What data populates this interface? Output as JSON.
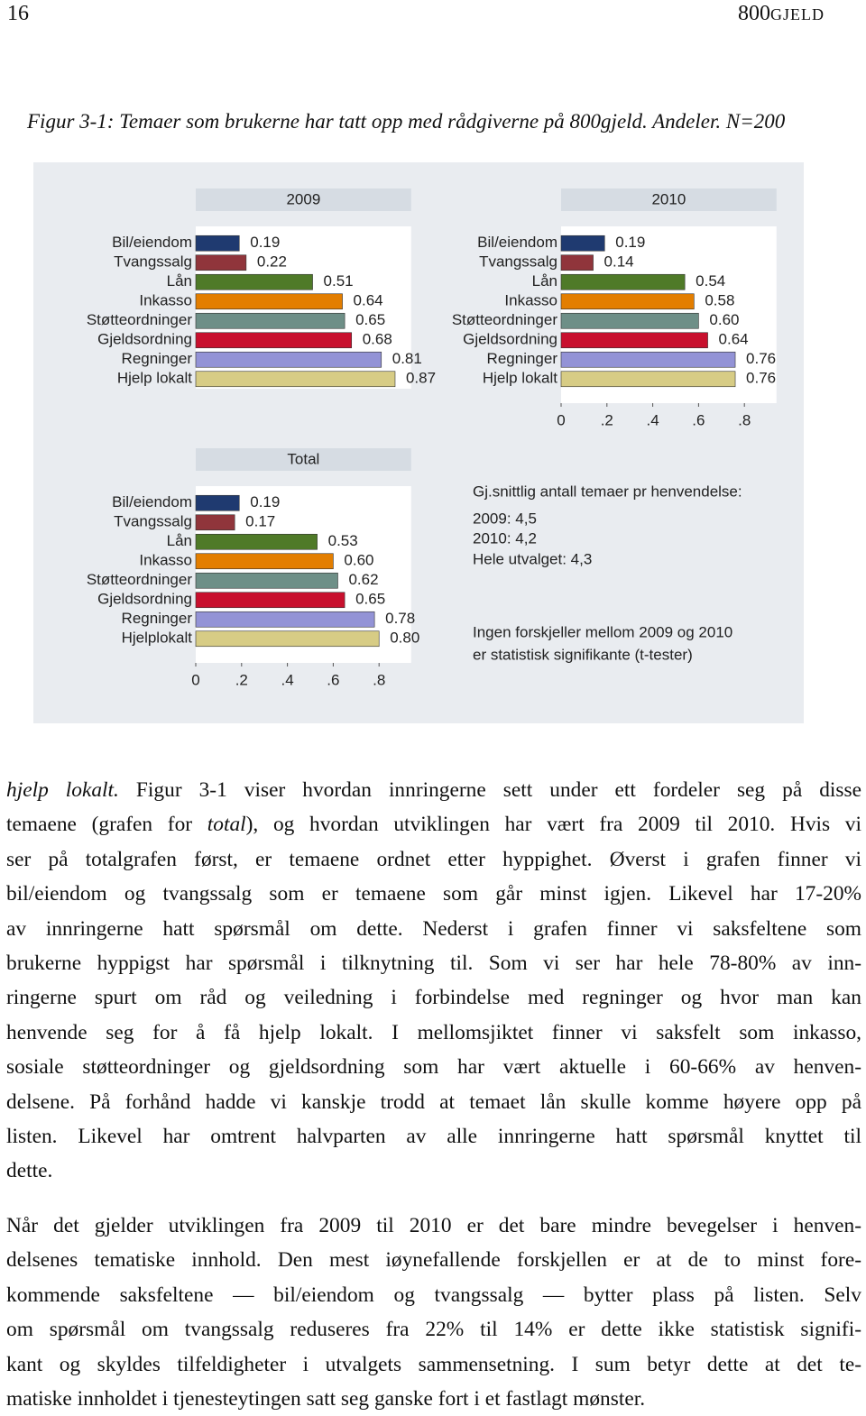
{
  "header": {
    "page": "16",
    "brand": "800",
    "brand_caps": "GJELD"
  },
  "caption": "Figur 3-1: Temaer som brukerne har tatt opp med rådgiverne på 800gjeld. Andeler. N=200",
  "chart_data": [
    {
      "type": "hbar",
      "title": "2009",
      "categories": [
        "Bil/eiendom",
        "Tvangssalg",
        "Lån",
        "Inkasso",
        "Støtteordninger",
        "Gjeldsordning",
        "Regninger",
        "Hjelp lokalt"
      ],
      "values": [
        0.19,
        0.22,
        0.51,
        0.64,
        0.65,
        0.68,
        0.81,
        0.87
      ],
      "value_labels": [
        "0.19",
        "0.22",
        "0.51",
        "0.64",
        "0.65",
        "0.68",
        "0.81",
        "0.87"
      ],
      "colors": [
        "#1f3a70",
        "#90353b",
        "#4f7a28",
        "#e37e00",
        "#6e8f87",
        "#c8102e",
        "#9393d6",
        "#d7cc85"
      ],
      "xlim": [
        0,
        0.94
      ]
    },
    {
      "type": "hbar",
      "title": "2010",
      "categories": [
        "Bil/eiendom",
        "Tvangssalg",
        "Lån",
        "Inkasso",
        "Støtteordninger",
        "Gjeldsordning",
        "Regninger",
        "Hjelp lokalt"
      ],
      "values": [
        0.19,
        0.14,
        0.54,
        0.58,
        0.6,
        0.64,
        0.76,
        0.76
      ],
      "value_labels": [
        "0.19",
        "0.14",
        "0.54",
        "0.58",
        "0.60",
        "0.64",
        "0.76",
        "0.76"
      ],
      "colors": [
        "#1f3a70",
        "#90353b",
        "#4f7a28",
        "#e37e00",
        "#6e8f87",
        "#c8102e",
        "#9393d6",
        "#d7cc85"
      ],
      "xlim": [
        0,
        0.94
      ],
      "xticks": [
        0,
        {
          "value": 0.2,
          "label": ".2"
        },
        {
          "value": 0.4,
          "label": ".4"
        },
        {
          "value": 0.6,
          "label": ".6"
        },
        {
          "value": 0.8,
          "label": ".8"
        }
      ]
    },
    {
      "type": "hbar",
      "title": "Total",
      "categories": [
        "Bil/eiendom",
        "Tvangssalg",
        "Lån",
        "Inkasso",
        "Støtteordninger",
        "Gjeldsordning",
        "Regninger",
        "Hjelplokalt"
      ],
      "values": [
        0.19,
        0.17,
        0.53,
        0.6,
        0.62,
        0.65,
        0.78,
        0.8
      ],
      "value_labels": [
        "0.19",
        "0.17",
        "0.53",
        "0.60",
        "0.62",
        "0.65",
        "0.78",
        "0.80"
      ],
      "colors": [
        "#1f3a70",
        "#90353b",
        "#4f7a28",
        "#e37e00",
        "#6e8f87",
        "#c8102e",
        "#9393d6",
        "#d7cc85"
      ],
      "xlim": [
        0,
        0.94
      ],
      "xticks": [
        0,
        {
          "value": 0.2,
          "label": ".2"
        },
        {
          "value": 0.4,
          "label": ".4"
        },
        {
          "value": 0.6,
          "label": ".6"
        },
        {
          "value": 0.8,
          "label": ".8"
        }
      ]
    }
  ],
  "notes": [
    "Gj.snittlig antall temaer pr henvendelse:",
    "2009: 4,5",
    "2010: 4,2",
    "Hele utvalget: 4,3",
    "Ingen forskjeller mellom 2009 og 2010",
    "er statistisk signifikante (t-tester)"
  ],
  "paragraphs": [
    {
      "lines": [
        [
          {
            "text": "hjelp lokalt.",
            "em": true
          },
          {
            "text": " Figur 3-1 viser hvordan innringerne sett under ett fordeler seg på disse"
          }
        ],
        [
          {
            "text": "temaene (grafen for "
          },
          {
            "text": "total",
            "em": true
          },
          {
            "text": "), og hvordan utviklingen har vært fra 2009 til 2010. Hvis vi"
          }
        ],
        [
          {
            "text": "ser på totalgrafen først, er temaene ordnet etter hyppighet. Øverst i grafen finner vi"
          }
        ],
        [
          {
            "text": "bil/eiendom og tvangssalg som er temaene som går minst igjen. Likevel har 17-20%"
          }
        ],
        [
          {
            "text": "av innringerne hatt spørsmål om dette. Nederst i grafen finner vi saksfeltene som"
          }
        ],
        [
          {
            "text": "brukerne hyppigst har spørsmål i tilknytning til. Som vi ser har hele 78-80% av inn-"
          }
        ],
        [
          {
            "text": "ringerne spurt om råd og veiledning i forbindelse med regninger og hvor man kan"
          }
        ],
        [
          {
            "text": "henvende seg for å få hjelp lokalt. I mellomsjiktet finner vi saksfelt som inkasso,"
          }
        ],
        [
          {
            "text": "sosiale støtteordninger og gjeldsordning som har vært aktuelle i 60-66% av henven-"
          }
        ],
        [
          {
            "text": "delsene. På forhånd hadde vi kanskje trodd at temaet lån skulle komme høyere opp på"
          }
        ],
        [
          {
            "text": "listen. Likevel har omtrent halvparten av alle innringerne hatt spørsmål knyttet til"
          }
        ],
        [
          {
            "text": "dette."
          }
        ]
      ]
    },
    {
      "lines": [
        [
          {
            "text": "Når det gjelder utviklingen fra 2009 til 2010 er det bare mindre bevegelser i henven-"
          }
        ],
        [
          {
            "text": "delsenes tematiske innhold. Den mest iøynefallende forskjellen er at de to minst fore-"
          }
        ],
        [
          {
            "text": "kommende saksfeltene — bil/eiendom og tvangssalg — bytter plass på listen. Selv"
          }
        ],
        [
          {
            "text": "om spørsmål om tvangssalg reduseres fra 22% til 14% er dette ikke statistisk signifi-"
          }
        ],
        [
          {
            "text": "kant og skyldes tilfeldigheter i utvalgets sammensetning. I sum betyr dette at det te-"
          }
        ],
        [
          {
            "text": "matiske innholdet i tjenesteytingen satt seg ganske fort i et fastlagt mønster."
          }
        ]
      ]
    }
  ]
}
